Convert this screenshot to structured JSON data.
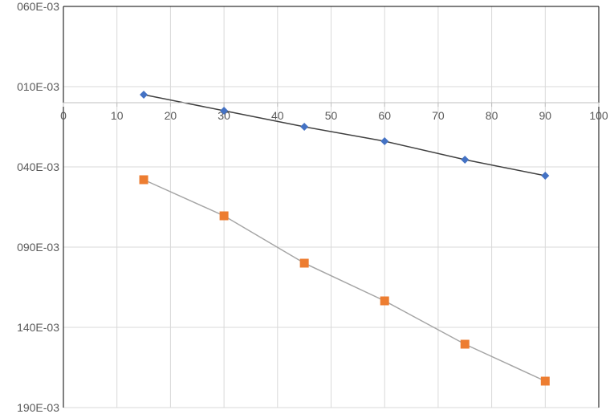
{
  "chart_data": {
    "type": "scatter",
    "title": "",
    "xlabel": "",
    "ylabel": "",
    "xlim": [
      0,
      100
    ],
    "ylim": [
      0.06,
      -0.19
    ],
    "x_ticks": [
      0,
      10,
      20,
      30,
      40,
      50,
      60,
      70,
      80,
      90,
      100
    ],
    "x_tick_labels": [
      "0",
      "10",
      "20",
      "30",
      "40",
      "50",
      "60",
      "70",
      "80",
      "90",
      "100"
    ],
    "y_ticks": [
      0.06,
      0.01,
      -0.04,
      -0.09,
      -0.14,
      -0.19
    ],
    "y_tick_labels": [
      "060E-03",
      "010E-03",
      "040E-03",
      "090E-03",
      "140E-03",
      "190E-03"
    ],
    "x_axis_crosses_y": 0,
    "grid": true,
    "legend": "none",
    "series": [
      {
        "marker": "diamond",
        "color": "#4472C4",
        "line_color": "#404040",
        "x": [
          15,
          30,
          45,
          60,
          75,
          90
        ],
        "y": [
          0.005,
          -0.005,
          -0.015,
          -0.024,
          -0.0355,
          -0.0455
        ]
      },
      {
        "marker": "square",
        "color": "#ED7D31",
        "line_color": "#A5A5A5",
        "x": [
          15,
          30,
          45,
          60,
          75,
          90
        ],
        "y": [
          -0.048,
          -0.0705,
          -0.1,
          -0.1235,
          -0.1505,
          -0.1735
        ]
      }
    ]
  }
}
